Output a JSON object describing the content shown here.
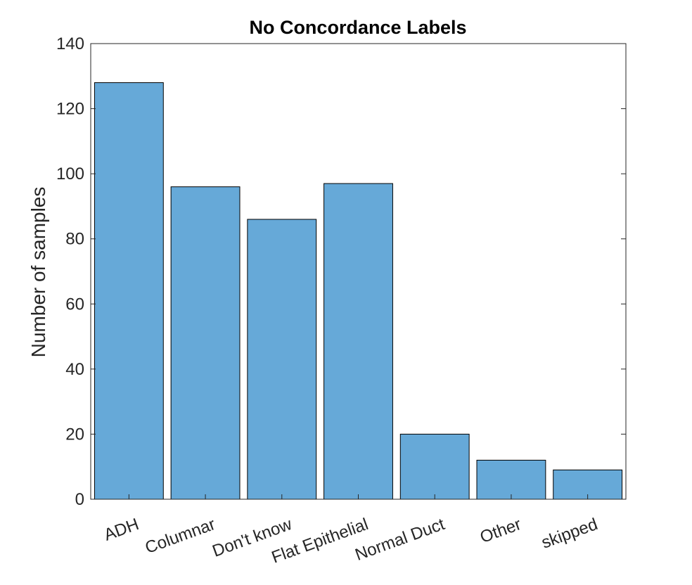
{
  "chart_data": {
    "type": "bar",
    "title": "No Concordance Labels",
    "xlabel": "",
    "ylabel": "Number of samples",
    "categories": [
      "ADH",
      "Columnar",
      "Don't know",
      "Flat Epithelial",
      "Normal Duct",
      "Other",
      "skipped"
    ],
    "values": [
      128,
      96,
      86,
      97,
      20,
      12,
      9
    ],
    "ylim": [
      0,
      140
    ],
    "yticks": [
      "0",
      "20",
      "40",
      "60",
      "80",
      "100",
      "120",
      "140"
    ],
    "grid": false,
    "legend": "none",
    "bar_color": "#66a9d8",
    "bar_edge_color": "#000000",
    "axis_color": "#262626"
  }
}
